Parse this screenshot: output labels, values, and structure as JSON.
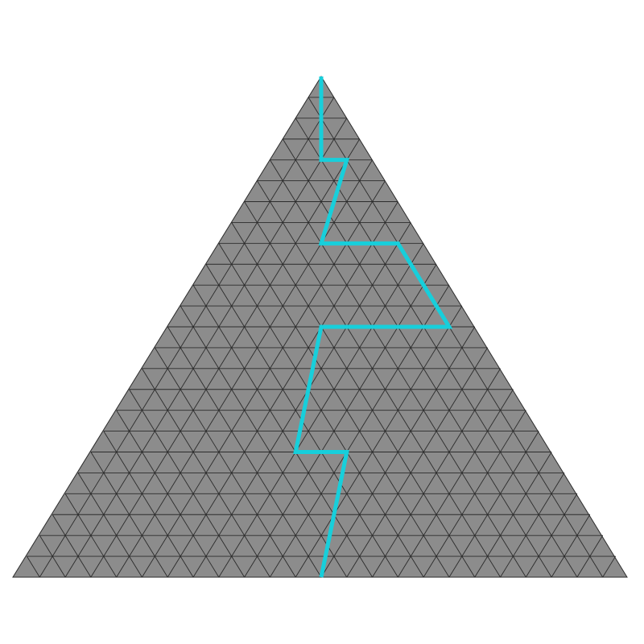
{
  "diagram": {
    "shape": "equilateral triangle subdivided into a triangular grid",
    "grid_divisions": 24,
    "colors": {
      "background": "#ffffff",
      "triangle_fill": "#8c8c8c",
      "grid_line": "#2b2b2b",
      "path": "#17cfdb"
    },
    "path_lattice_points": [
      [
        0,
        0
      ],
      [
        4,
        2
      ],
      [
        4,
        3
      ],
      [
        8,
        4
      ],
      [
        8,
        7
      ],
      [
        12,
        11
      ],
      [
        12,
        6
      ],
      [
        18,
        8
      ],
      [
        18,
        10
      ],
      [
        24,
        12
      ]
    ]
  }
}
